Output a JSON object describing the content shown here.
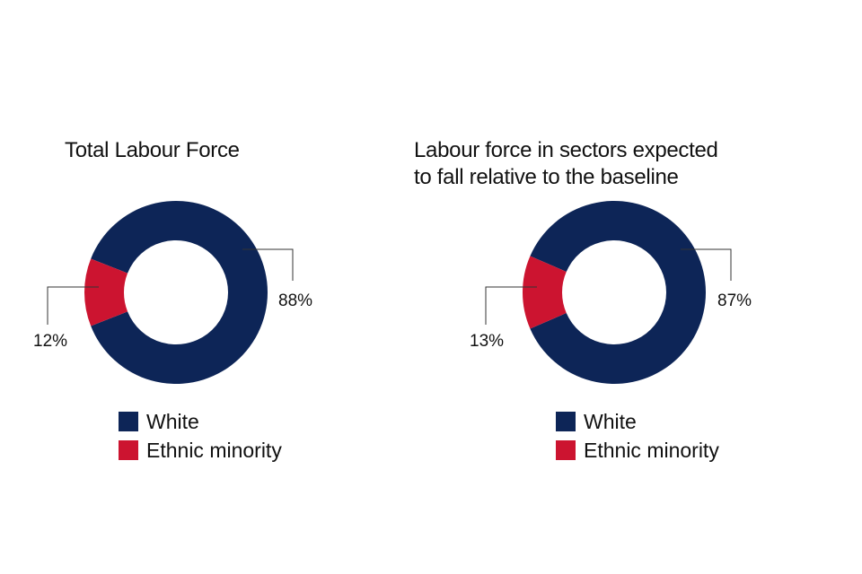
{
  "chart_data": [
    {
      "type": "pie",
      "title": "Total Labour Force",
      "categories": [
        "White",
        "Ethnic minority"
      ],
      "values": [
        88,
        12
      ],
      "labels": [
        "88%",
        "12%"
      ],
      "colors": [
        "#0d2557",
        "#cc1430"
      ],
      "legend": [
        "White",
        "Ethnic minority"
      ]
    },
    {
      "type": "pie",
      "title": "Labour force in sectors expected to fall relative to the baseline",
      "title_lines": [
        "Labour force in sectors expected",
        "to fall relative to the baseline"
      ],
      "categories": [
        "White",
        "Ethnic minority"
      ],
      "values": [
        87,
        13
      ],
      "labels": [
        "87%",
        "13%"
      ],
      "colors": [
        "#0d2557",
        "#cc1430"
      ],
      "legend": [
        "White",
        "Ethnic minority"
      ]
    }
  ]
}
